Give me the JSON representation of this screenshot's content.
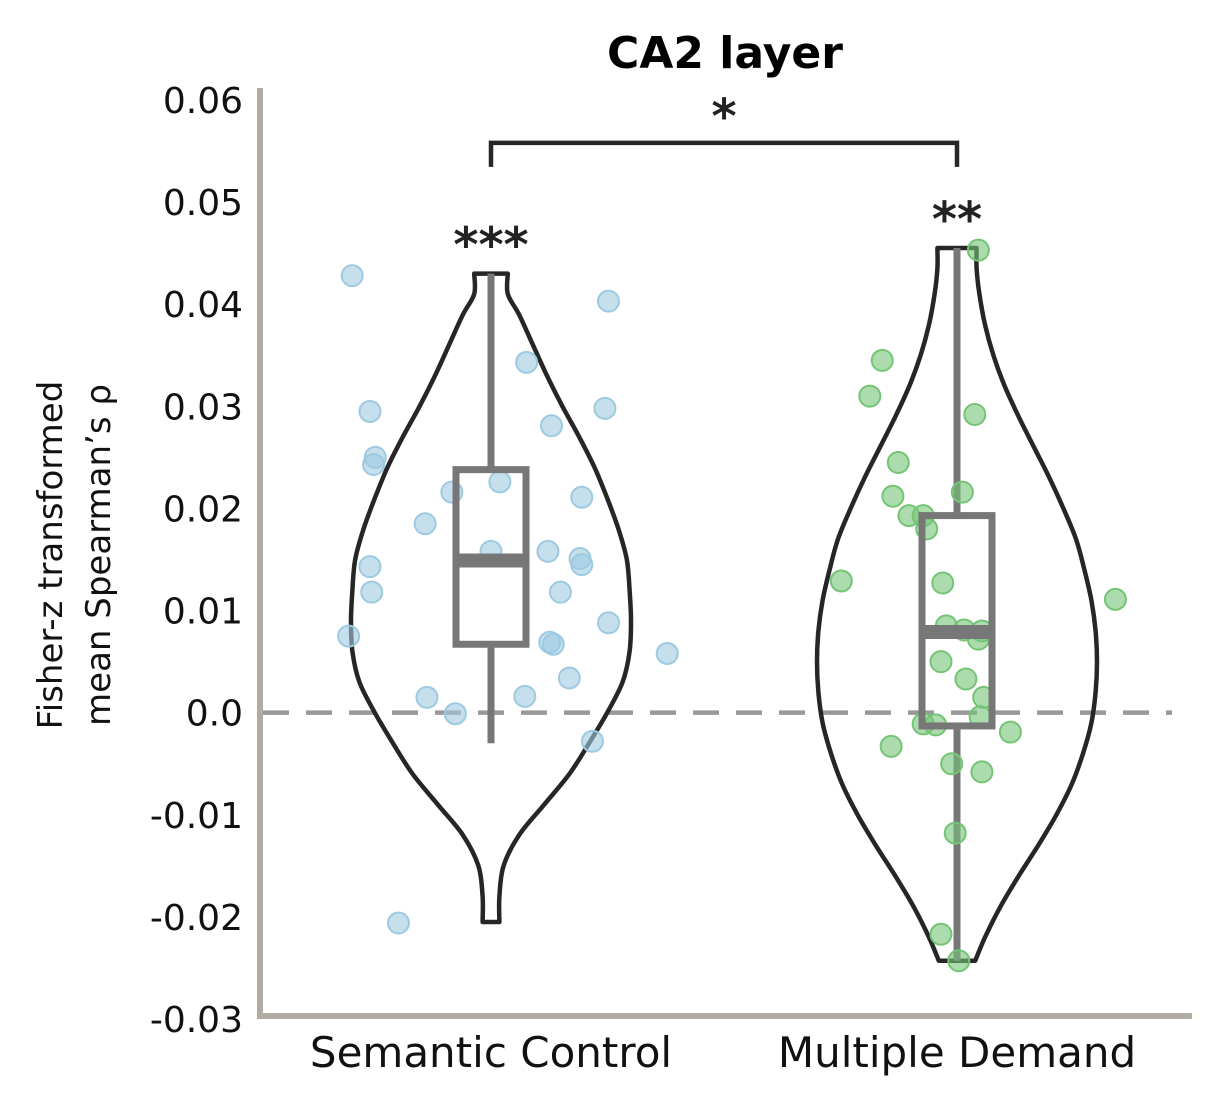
{
  "chart_data": {
    "type": "violin",
    "title": "CA2 layer",
    "ylabel_line1": "Fisher-z transformed",
    "ylabel_line2": "mean Spearman’s ρ",
    "xlabel": "",
    "ylim": [
      -0.03,
      0.06
    ],
    "yticks": [
      -0.03,
      -0.02,
      -0.01,
      0.0,
      0.01,
      0.02,
      0.03,
      0.04,
      0.05,
      0.06
    ],
    "ytick_labels": [
      "-0.03",
      "-0.02",
      "-0.01",
      "0.0",
      "0.01",
      "0.02",
      "0.03",
      "0.04",
      "0.05",
      "0.06"
    ],
    "reference_line": 0.0,
    "categories": [
      "Semantic Control",
      "Multiple Demand"
    ],
    "series": [
      {
        "category": "Semantic Control",
        "color": "#9ecae1",
        "significance": "***",
        "box": {
          "whisker_low": -0.003,
          "q1": 0.0067,
          "median": 0.0149,
          "q3": 0.0238,
          "whisker_high": 0.043
        },
        "violin_range": [
          -0.0205,
          0.043
        ],
        "violin_shape": [
          [
            -0.0205,
            0.06
          ],
          [
            -0.018,
            0.06
          ],
          [
            -0.015,
            0.09
          ],
          [
            -0.012,
            0.2
          ],
          [
            -0.009,
            0.38
          ],
          [
            -0.006,
            0.56
          ],
          [
            -0.003,
            0.7
          ],
          [
            0.0,
            0.83
          ],
          [
            0.003,
            0.94
          ],
          [
            0.006,
            0.99
          ],
          [
            0.009,
            1.0
          ],
          [
            0.012,
            0.99
          ],
          [
            0.015,
            0.97
          ],
          [
            0.018,
            0.91
          ],
          [
            0.021,
            0.83
          ],
          [
            0.024,
            0.74
          ],
          [
            0.027,
            0.63
          ],
          [
            0.03,
            0.51
          ],
          [
            0.033,
            0.4
          ],
          [
            0.036,
            0.3
          ],
          [
            0.039,
            0.2
          ],
          [
            0.041,
            0.12
          ],
          [
            0.043,
            0.12
          ]
        ],
        "points": [
          [
            -0.78,
            0.0428
          ],
          [
            0.66,
            0.0403
          ],
          [
            0.2,
            0.0343
          ],
          [
            -0.68,
            0.0295
          ],
          [
            0.64,
            0.0298
          ],
          [
            0.34,
            0.0281
          ],
          [
            -0.65,
            0.025
          ],
          [
            -0.66,
            0.0243
          ],
          [
            -0.22,
            0.0216
          ],
          [
            0.05,
            0.0226
          ],
          [
            0.51,
            0.0211
          ],
          [
            -0.37,
            0.0185
          ],
          [
            0.0,
            0.0158
          ],
          [
            0.32,
            0.0158
          ],
          [
            0.5,
            0.0151
          ],
          [
            0.51,
            0.0145
          ],
          [
            -0.68,
            0.0143
          ],
          [
            -0.67,
            0.0118
          ],
          [
            0.39,
            0.0118
          ],
          [
            0.66,
            0.0088
          ],
          [
            -0.8,
            0.0075
          ],
          [
            0.35,
            0.0067
          ],
          [
            0.33,
            0.0069
          ],
          [
            0.99,
            0.0058
          ],
          [
            0.44,
            0.0034
          ],
          [
            -0.36,
            0.0015
          ],
          [
            0.19,
            0.0016
          ],
          [
            -0.2,
            -0.0001
          ],
          [
            0.57,
            -0.0028
          ],
          [
            -0.52,
            -0.0206
          ]
        ]
      },
      {
        "category": "Multiple Demand",
        "color": "#74c476",
        "significance": "**",
        "box": {
          "whisker_low": -0.0243,
          "q1": -0.0013,
          "median": 0.0079,
          "q3": 0.0193,
          "whisker_high": 0.0455
        },
        "violin_range": [
          -0.0243,
          0.0455
        ],
        "violin_shape": [
          [
            -0.0243,
            0.13
          ],
          [
            -0.022,
            0.2
          ],
          [
            -0.019,
            0.31
          ],
          [
            -0.016,
            0.44
          ],
          [
            -0.013,
            0.58
          ],
          [
            -0.01,
            0.71
          ],
          [
            -0.007,
            0.82
          ],
          [
            -0.004,
            0.9
          ],
          [
            -0.001,
            0.96
          ],
          [
            0.002,
            0.99
          ],
          [
            0.005,
            1.0
          ],
          [
            0.008,
            0.99
          ],
          [
            0.011,
            0.96
          ],
          [
            0.014,
            0.91
          ],
          [
            0.017,
            0.85
          ],
          [
            0.02,
            0.76
          ],
          [
            0.023,
            0.66
          ],
          [
            0.026,
            0.55
          ],
          [
            0.029,
            0.44
          ],
          [
            0.032,
            0.34
          ],
          [
            0.035,
            0.26
          ],
          [
            0.038,
            0.2
          ],
          [
            0.041,
            0.16
          ],
          [
            0.0435,
            0.14
          ],
          [
            0.0455,
            0.14
          ]
        ],
        "points": [
          [
            0.12,
            0.0453
          ],
          [
            -0.42,
            0.0345
          ],
          [
            -0.49,
            0.031
          ],
          [
            0.1,
            0.0292
          ],
          [
            -0.33,
            0.0245
          ],
          [
            -0.36,
            0.0212
          ],
          [
            0.03,
            0.0216
          ],
          [
            -0.27,
            0.0193
          ],
          [
            -0.19,
            0.0193
          ],
          [
            -0.17,
            0.018
          ],
          [
            -0.65,
            0.0129
          ],
          [
            -0.08,
            0.0127
          ],
          [
            0.89,
            0.0111
          ],
          [
            -0.06,
            0.0085
          ],
          [
            0.04,
            0.0081
          ],
          [
            0.14,
            0.008
          ],
          [
            0.12,
            0.0072
          ],
          [
            -0.09,
            0.005
          ],
          [
            0.05,
            0.0033
          ],
          [
            0.15,
            0.0015
          ],
          [
            0.13,
            -0.0004
          ],
          [
            -0.19,
            -0.0011
          ],
          [
            -0.12,
            -0.0012
          ],
          [
            0.3,
            -0.0019
          ],
          [
            -0.37,
            -0.0033
          ],
          [
            -0.03,
            -0.005
          ],
          [
            0.14,
            -0.0058
          ],
          [
            -0.01,
            -0.0118
          ],
          [
            -0.09,
            -0.0217
          ],
          [
            0.01,
            -0.0243
          ]
        ]
      }
    ],
    "comparison": {
      "between": [
        "Semantic Control",
        "Multiple Demand"
      ],
      "label": "*",
      "y": 0.0558
    }
  }
}
